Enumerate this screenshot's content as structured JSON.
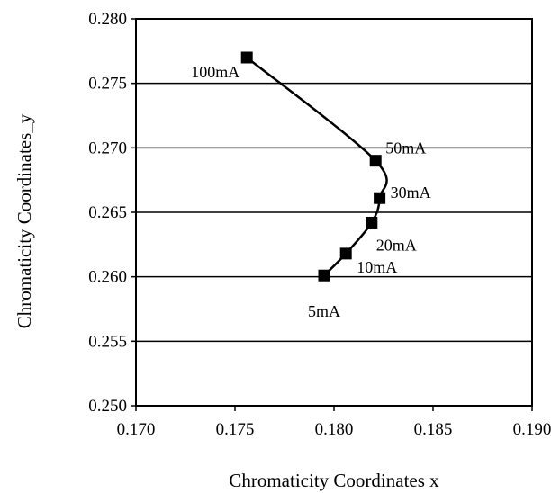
{
  "chart_data": {
    "type": "line",
    "title": "",
    "xlabel": "Chromaticity Coordinates  x",
    "ylabel": "Chromaticity Coordinates_y",
    "xlim": [
      0.17,
      0.19
    ],
    "ylim": [
      0.25,
      0.28
    ],
    "x_ticks": [
      "0.170",
      "0.175",
      "0.180",
      "0.185",
      "0.190"
    ],
    "y_ticks": [
      "0.250",
      "0.255",
      "0.260",
      "0.265",
      "0.270",
      "0.275",
      "0.280"
    ],
    "grid": "horizontal",
    "series": [
      {
        "marker": "square",
        "color": "#000000",
        "points": [
          {
            "label": "5mA",
            "x": 0.1795,
            "y": 0.2601
          },
          {
            "label": "10mA",
            "x": 0.1806,
            "y": 0.2618
          },
          {
            "label": "20mA",
            "x": 0.1819,
            "y": 0.2642
          },
          {
            "label": "30mA",
            "x": 0.1823,
            "y": 0.2661
          },
          {
            "label": "50mA",
            "x": 0.1821,
            "y": 0.269
          },
          {
            "label": "100mA",
            "x": 0.1756,
            "y": 0.277
          }
        ]
      }
    ]
  }
}
